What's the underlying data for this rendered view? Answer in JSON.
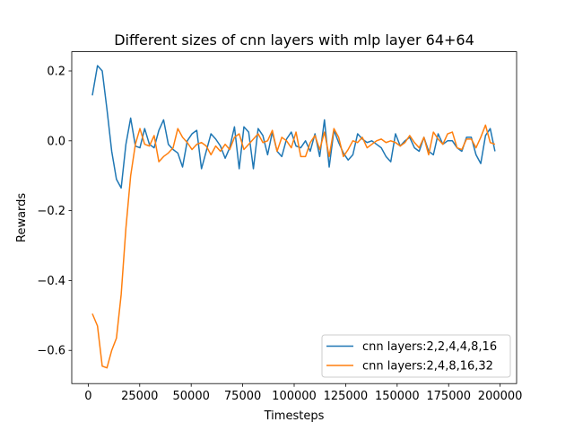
{
  "chart_data": {
    "type": "line",
    "title": "Different sizes of cnn layers with mlp layer 64+64",
    "xlabel": "Timesteps",
    "ylabel": "Rewards",
    "xlim": [
      -8000,
      208000
    ],
    "ylim": [
      -0.695,
      0.255
    ],
    "xticks": [
      0,
      25000,
      50000,
      75000,
      100000,
      125000,
      150000,
      175000,
      200000
    ],
    "yticks": [
      0.2,
      0.0,
      -0.2,
      -0.4,
      -0.6
    ],
    "ytick_labels": [
      "0.2",
      "0.0",
      "−0.2",
      "−0.4",
      "−0.6"
    ],
    "grid": false,
    "legend_position": "lower-right",
    "series": [
      {
        "name": "cnn layers:2,2,4,4,8,16",
        "color": "#1f77b4",
        "x": [
          2000,
          4500,
          6800,
          9100,
          11400,
          13700,
          16000,
          18300,
          20600,
          22900,
          25100,
          27400,
          29700,
          32000,
          34300,
          36600,
          38900,
          41200,
          43500,
          45800,
          48100,
          50400,
          52700,
          55000,
          57300,
          59600,
          61900,
          64200,
          66500,
          68700,
          71000,
          73300,
          75600,
          77900,
          80200,
          82500,
          84800,
          87100,
          89400,
          91700,
          94000,
          96300,
          98600,
          100900,
          103200,
          105500,
          107800,
          110100,
          112400,
          114700,
          117000,
          119300,
          121600,
          123900,
          126200,
          128500,
          130800,
          133100,
          135400,
          137700,
          140000,
          142300,
          144600,
          146900,
          149200,
          151500,
          153800,
          156100,
          158400,
          160700,
          163000,
          165300,
          167600,
          169900,
          172200,
          174500,
          176800,
          179100,
          181400,
          183700,
          186000,
          188300,
          190600,
          192900,
          195200,
          197500
        ],
        "values": [
          0.13,
          0.215,
          0.2,
          0.09,
          -0.03,
          -0.11,
          -0.135,
          -0.01,
          0.065,
          -0.015,
          -0.02,
          0.035,
          -0.01,
          -0.02,
          0.03,
          0.06,
          -0.01,
          -0.025,
          -0.035,
          -0.075,
          0.0,
          0.02,
          0.03,
          -0.08,
          -0.03,
          0.02,
          0.005,
          -0.015,
          -0.05,
          -0.02,
          0.04,
          -0.08,
          0.04,
          0.025,
          -0.08,
          0.035,
          0.015,
          -0.04,
          0.025,
          -0.03,
          -0.045,
          0.005,
          0.025,
          -0.015,
          -0.02,
          0.0,
          -0.03,
          0.02,
          -0.045,
          0.06,
          -0.075,
          0.03,
          -0.005,
          -0.035,
          -0.055,
          -0.04,
          0.02,
          0.005,
          -0.005,
          0.0,
          -0.01,
          -0.02,
          -0.045,
          -0.06,
          0.02,
          -0.015,
          0.0,
          0.01,
          -0.02,
          -0.03,
          0.01,
          -0.03,
          -0.04,
          0.02,
          -0.01,
          0.0,
          0.0,
          -0.02,
          -0.03,
          0.01,
          0.01,
          -0.04,
          -0.065,
          0.015,
          0.035,
          -0.03
        ]
      },
      {
        "name": "cnn layers:2,4,8,16,32",
        "color": "#ff7f0e",
        "x": [
          2000,
          4500,
          6800,
          9100,
          11400,
          13700,
          16000,
          18300,
          20600,
          22900,
          25100,
          27400,
          29700,
          32000,
          34300,
          36600,
          38900,
          41200,
          43500,
          45800,
          48100,
          50400,
          52700,
          55000,
          57300,
          59600,
          61900,
          64200,
          66500,
          68700,
          71000,
          73300,
          75600,
          77900,
          80200,
          82500,
          84800,
          87100,
          89400,
          91700,
          94000,
          96300,
          98600,
          100900,
          103200,
          105500,
          107800,
          110100,
          112400,
          114700,
          117000,
          119300,
          121600,
          123900,
          126200,
          128500,
          130800,
          133100,
          135400,
          137700,
          140000,
          142300,
          144600,
          146900,
          149200,
          151500,
          153800,
          156100,
          158400,
          160700,
          163000,
          165300,
          167600,
          169900,
          172200,
          174500,
          176800,
          179100,
          181400,
          183700,
          186000,
          188300,
          190600,
          192900,
          195200,
          197500
        ],
        "values": [
          -0.495,
          -0.53,
          -0.645,
          -0.65,
          -0.6,
          -0.565,
          -0.44,
          -0.25,
          -0.1,
          -0.01,
          0.035,
          -0.01,
          -0.015,
          0.015,
          -0.06,
          -0.045,
          -0.035,
          -0.02,
          0.035,
          0.01,
          -0.005,
          -0.025,
          -0.01,
          -0.005,
          -0.015,
          -0.04,
          -0.015,
          -0.03,
          -0.01,
          -0.025,
          0.01,
          0.02,
          -0.025,
          -0.01,
          0.005,
          0.02,
          -0.005,
          0.0,
          0.03,
          -0.03,
          0.01,
          0.0,
          -0.02,
          0.025,
          -0.045,
          -0.045,
          -0.005,
          0.015,
          -0.025,
          0.025,
          -0.045,
          0.035,
          0.01,
          -0.045,
          -0.025,
          0.0,
          -0.005,
          0.01,
          -0.02,
          -0.01,
          0.0,
          0.005,
          -0.005,
          0.0,
          -0.005,
          -0.015,
          -0.005,
          0.015,
          -0.005,
          -0.02,
          0.01,
          -0.04,
          0.025,
          0.005,
          -0.01,
          0.02,
          0.025,
          -0.02,
          -0.025,
          0.005,
          0.005,
          -0.02,
          0.01,
          0.045,
          -0.005,
          -0.01
        ]
      }
    ]
  }
}
